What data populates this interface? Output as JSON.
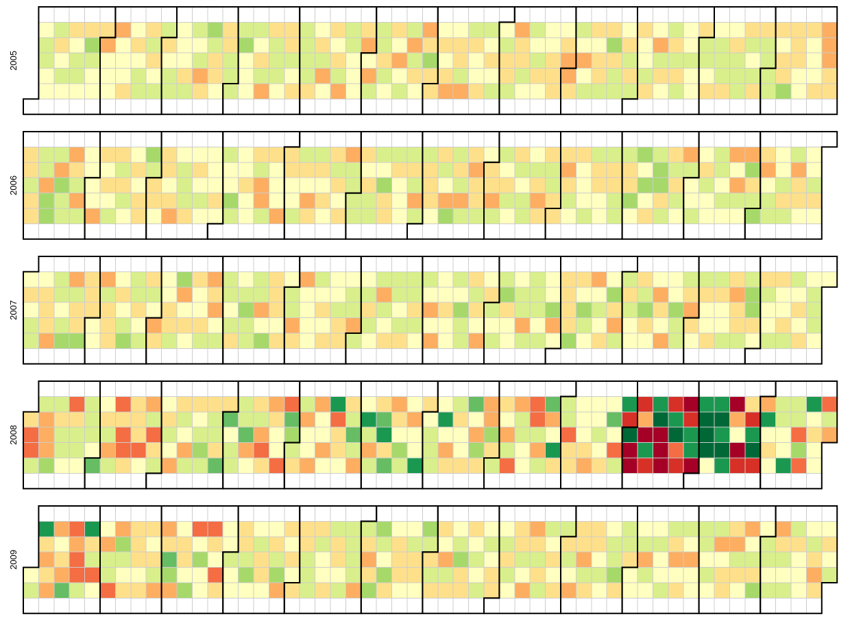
{
  "chart_data": {
    "type": "heatmap",
    "subtype": "calendar",
    "title": "",
    "years": [
      "2005",
      "2006",
      "2007",
      "2008",
      "2009"
    ],
    "color_scale": {
      "domain": [
        0,
        10
      ],
      "colors": [
        "#a50026",
        "#d73027",
        "#f46d43",
        "#fdae61",
        "#fee08b",
        "#ffffbf",
        "#d9ef8b",
        "#a6d96a",
        "#66bd63",
        "#1a9850",
        "#006837"
      ]
    },
    "value_description": "per-day value mapped to diverging RdYlGn scale (5 = neutral)",
    "daily_values_approx": {
      "2005": "mostly 4-6, mild variation",
      "2006": "mostly 4-6, mild variation",
      "2007": "mostly 4-6, occasional 2-3 and 7-8",
      "2008": "moderate Jan-Sep, extreme Oct-Nov (0-1 and 9-10)",
      "2009": "elevated variation Jan-Mar, calmer after"
    }
  }
}
